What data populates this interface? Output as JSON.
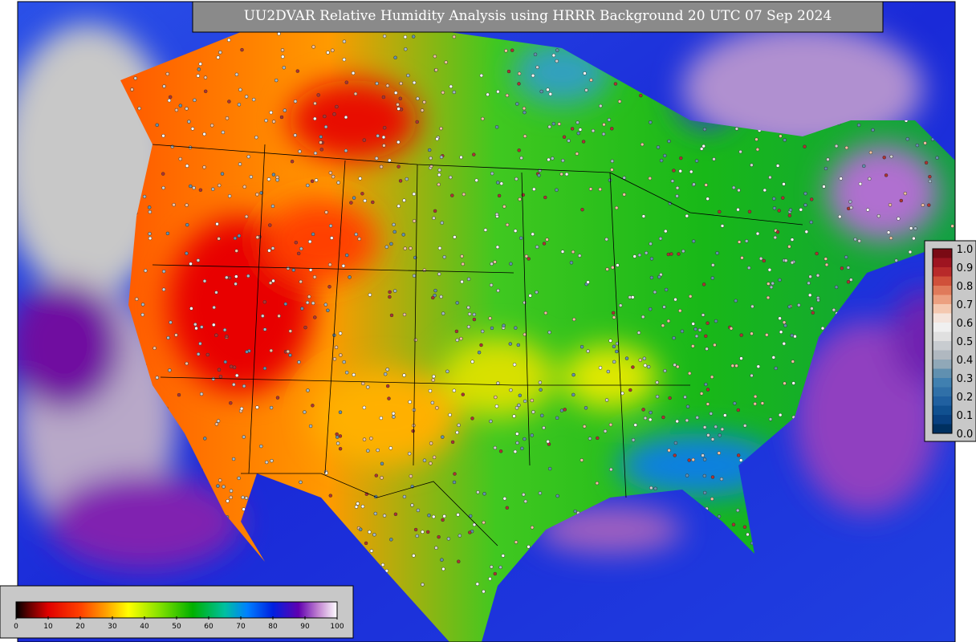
{
  "title": "UU2DVAR Relative Humidity Analysis using HRRR Background 20 UTC 07 Sep 2024",
  "humidity_colorbar": {
    "ticks": [
      0,
      10,
      20,
      30,
      40,
      50,
      60,
      70,
      80,
      90,
      100
    ]
  },
  "observation_legend": {
    "ticks": [
      "1.0",
      "0.9",
      "0.8",
      "0.7",
      "0.6",
      "0.5",
      "0.4",
      "0.3",
      "0.2",
      "0.1",
      "0.0"
    ]
  }
}
